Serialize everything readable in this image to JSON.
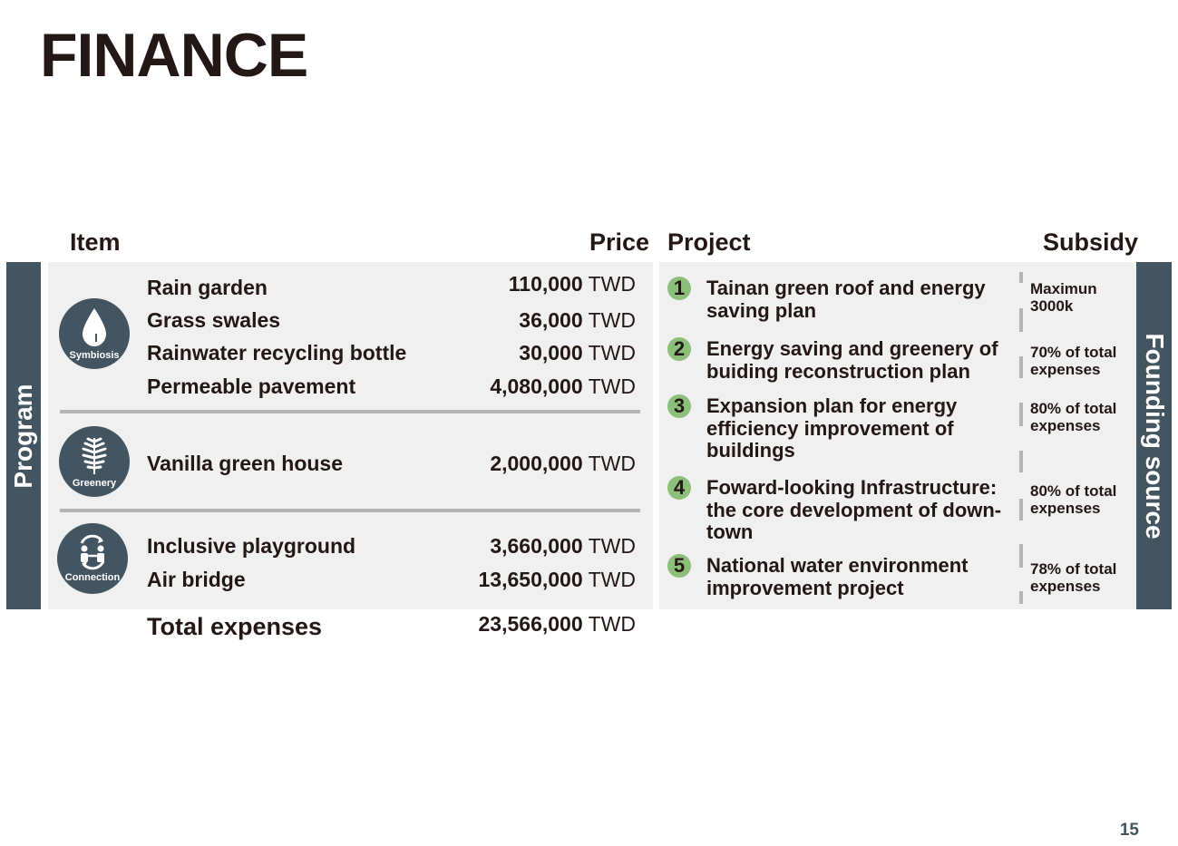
{
  "title": "FINANCE",
  "headers": {
    "item": "Item",
    "price": "Price",
    "project": "Project",
    "subsidy": "Subsidy"
  },
  "side_labels": {
    "left": "Program",
    "right": "Founding source"
  },
  "groups": [
    {
      "icon": "water-drop-icon",
      "label": "Symbiosis",
      "items": [
        {
          "name": "Rain garden",
          "price": "110,000",
          "unit": "TWD"
        },
        {
          "name": "Grass swales",
          "price": "36,000",
          "unit": "TWD"
        },
        {
          "name": "Rainwater recycling bottle",
          "price": "30,000",
          "unit": "TWD"
        },
        {
          "name": "Permeable pavement",
          "price": "4,080,000",
          "unit": "TWD"
        }
      ]
    },
    {
      "icon": "leaf-icon",
      "label": "Greenery",
      "items": [
        {
          "name": "Vanilla green house",
          "price": "2,000,000",
          "unit": "TWD"
        }
      ]
    },
    {
      "icon": "people-connection-icon",
      "label": "Connection",
      "items": [
        {
          "name": "Inclusive playground",
          "price": "3,660,000",
          "unit": "TWD"
        },
        {
          "name": "Air bridge",
          "price": "13,650,000",
          "unit": "TWD"
        }
      ]
    }
  ],
  "total": {
    "label": "Total expenses",
    "price": "23,566,000",
    "unit": "TWD"
  },
  "projects": [
    {
      "number": "1",
      "name": "Tainan green roof and energy saving plan",
      "subsidy": "Maximun 3000k"
    },
    {
      "number": "2",
      "name": "Energy saving and greenery of buiding reconstruction plan",
      "subsidy": "70% of total expenses"
    },
    {
      "number": "3",
      "name": "Expansion plan for energy efficiency improvement of buildings",
      "subsidy": "80% of total expenses"
    },
    {
      "number": "4",
      "name": "Foward-looking Infrastructure: the core development of down-town",
      "subsidy": "80% of total expenses"
    },
    {
      "number": "5",
      "name": "National water environment improvement project",
      "subsidy": "78% of total expenses"
    }
  ],
  "page_number": "15",
  "colors": {
    "dark_slate": "#435560",
    "panel_gray": "#f0f0f0",
    "badge_green": "#8cbf7a",
    "text": "#231815"
  }
}
